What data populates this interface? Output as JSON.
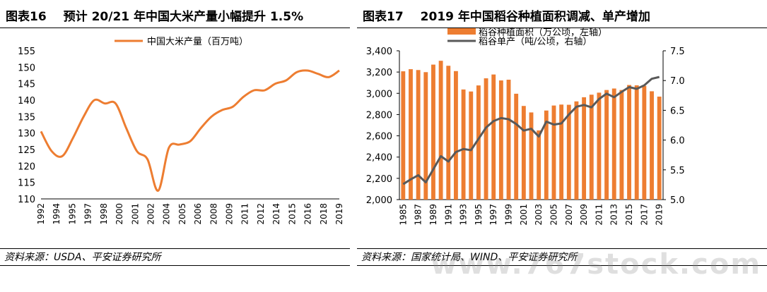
{
  "left_panel": {
    "fig_no": "图表16",
    "title": "预计 20/21 年中国大米产量小幅提升 1.5%",
    "source": "资料来源：USDA、平安证券研究所"
  },
  "right_panel": {
    "fig_no": "图表17",
    "title": "2019 年中国稻谷种植面积调减、单产增加",
    "source": "资料来源：国家统计局、WIND、平安证券研究所"
  },
  "watermark": "www.767stock.com",
  "chart_data": [
    {
      "type": "line",
      "legend": "中国大米产量（百万吨）",
      "legend_position": "top",
      "series_color": "#ED7D31",
      "ylim": [
        110,
        155
      ],
      "yticks": [
        110,
        115,
        120,
        125,
        130,
        135,
        140,
        145,
        150,
        155
      ],
      "xtick_labels": [
        "1992",
        "1994",
        "1995",
        "1997",
        "1998",
        "2000",
        "2001",
        "2002",
        "2004",
        "2005",
        "2006",
        "2008",
        "2009",
        "2011",
        "2012",
        "2014",
        "2015",
        "2016",
        "2018",
        "2019"
      ],
      "x": [
        1992,
        1993,
        1994,
        1995,
        1996,
        1997,
        1998,
        1999,
        2000,
        2001,
        2002,
        2003,
        2004,
        2005,
        2006,
        2007,
        2008,
        2009,
        2010,
        2011,
        2012,
        2013,
        2014,
        2015,
        2016,
        2017,
        2018,
        2019,
        2020
      ],
      "values": [
        130.5,
        124.5,
        123.0,
        128.5,
        135.0,
        140.0,
        139.0,
        139.0,
        131.5,
        124.5,
        122.0,
        112.5,
        125.5,
        126.5,
        127.5,
        131.5,
        135.0,
        137.0,
        138.0,
        141.0,
        143.0,
        143.0,
        145.0,
        146.0,
        148.5,
        149.0,
        148.0,
        147.0,
        149.0
      ]
    },
    {
      "type": "bar",
      "legend_position": "top",
      "grid": false,
      "x_labels_rotated": true,
      "categories": [
        "1985",
        "1986",
        "1987",
        "1988",
        "1989",
        "1990",
        "1991",
        "1992",
        "1993",
        "1994",
        "1995",
        "1996",
        "1997",
        "1998",
        "1999",
        "2000",
        "2001",
        "2002",
        "2003",
        "2004",
        "2005",
        "2006",
        "2007",
        "2008",
        "2009",
        "2010",
        "2011",
        "2012",
        "2013",
        "2014",
        "2015",
        "2016",
        "2017",
        "2018",
        "2019"
      ],
      "xtick_labels": [
        "1985",
        "1987",
        "1989",
        "1991",
        "1993",
        "1995",
        "1997",
        "1999",
        "2001",
        "2003",
        "2005",
        "2007",
        "2009",
        "2011",
        "2013",
        "2015",
        "2017",
        "2019"
      ],
      "y_left_lim": [
        2000,
        3400
      ],
      "y_left_ticks": [
        "2,000",
        "2,200",
        "2,400",
        "2,600",
        "2,800",
        "3,000",
        "3,200",
        "3,400"
      ],
      "y_right_lim": [
        5.0,
        7.5
      ],
      "y_right_ticks": [
        "5.0",
        "5.5",
        "6.0",
        "6.5",
        "7.0",
        "7.5"
      ],
      "series": [
        {
          "name": "稻谷种植面积（万公顷，左轴）",
          "kind": "bar",
          "axis": "left",
          "color": "#ED7D31",
          "values": [
            3207,
            3227,
            3219,
            3199,
            3270,
            3306,
            3259,
            3209,
            3036,
            3017,
            3074,
            3141,
            3177,
            3121,
            3128,
            2996,
            2881,
            2820,
            2651,
            2838,
            2885,
            2894,
            2892,
            2924,
            2963,
            2987,
            3006,
            3031,
            3045,
            3031,
            3078,
            3075,
            3070,
            3019,
            2969
          ]
        },
        {
          "name": "稻谷单产（吨/公顷，右轴）",
          "kind": "line",
          "axis": "right",
          "color": "#595959",
          "values": [
            5.26,
            5.34,
            5.41,
            5.29,
            5.51,
            5.73,
            5.64,
            5.8,
            5.85,
            5.83,
            6.02,
            6.21,
            6.32,
            6.37,
            6.35,
            6.27,
            6.16,
            6.19,
            6.06,
            6.31,
            6.26,
            6.28,
            6.43,
            6.56,
            6.59,
            6.55,
            6.69,
            6.78,
            6.72,
            6.81,
            6.89,
            6.86,
            6.92,
            7.03,
            7.06
          ]
        }
      ]
    }
  ]
}
